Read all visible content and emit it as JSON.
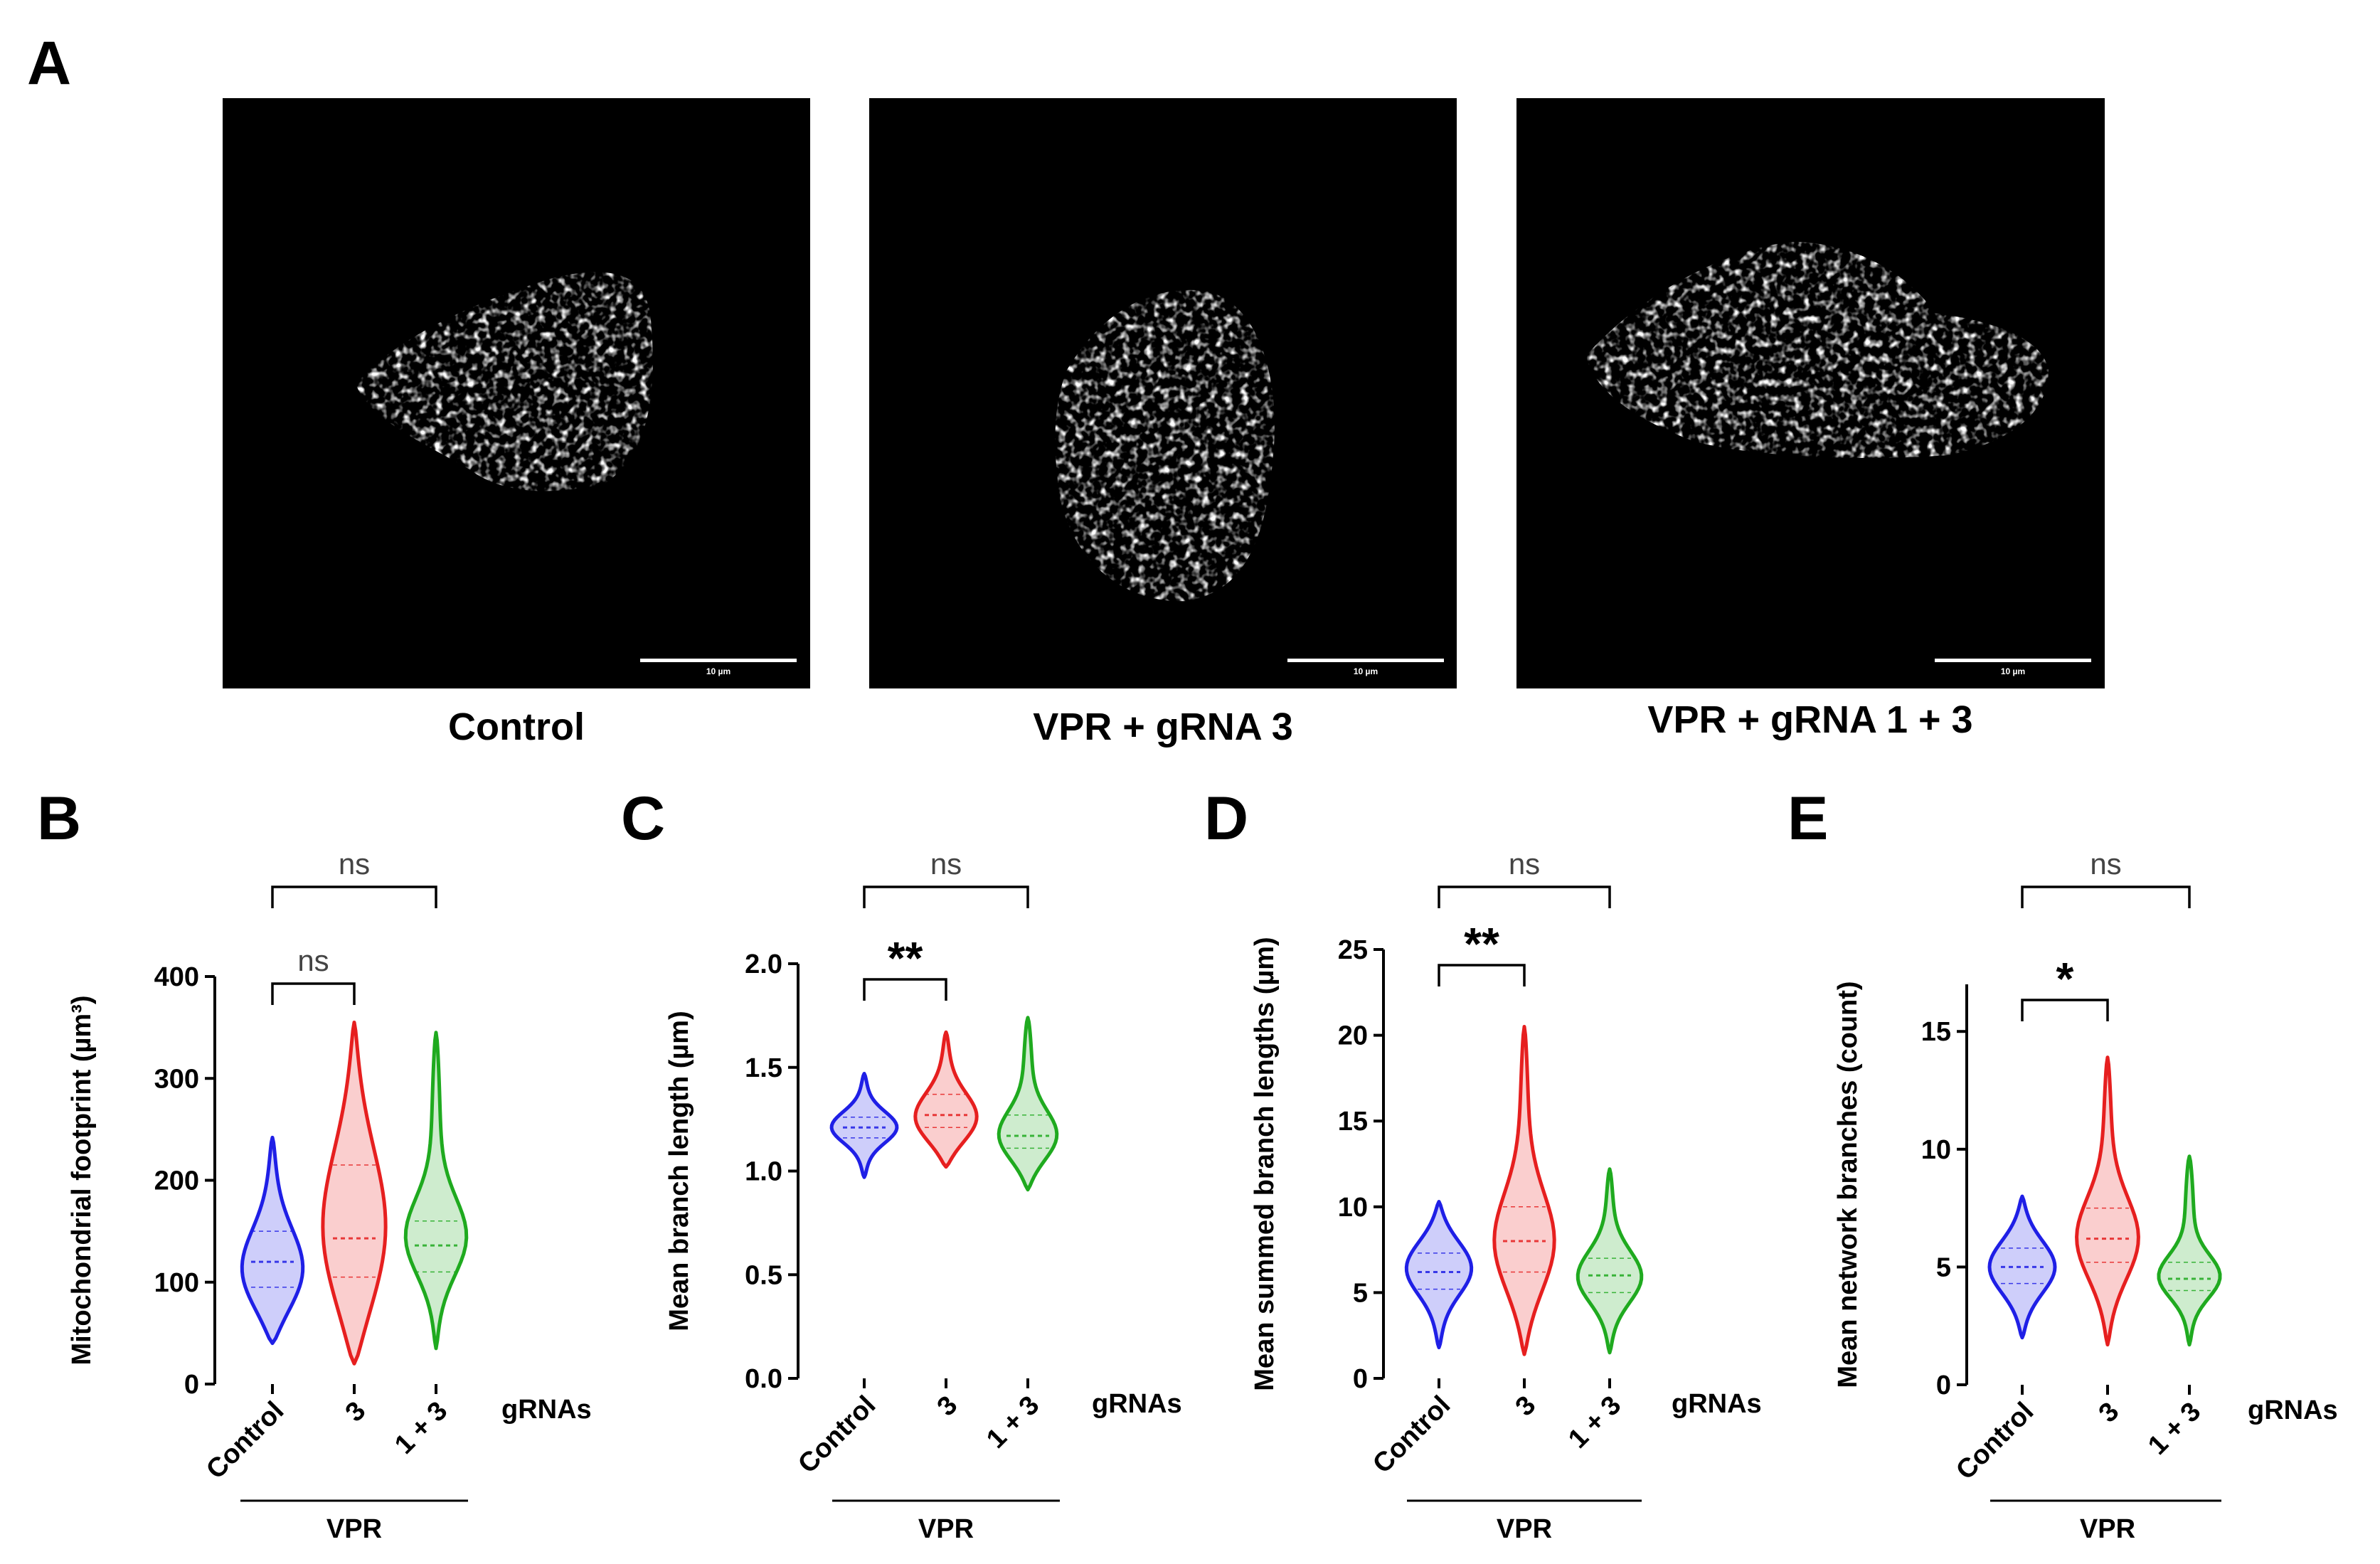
{
  "panel_labels": [
    "A",
    "B",
    "C",
    "D",
    "E"
  ],
  "images": [
    {
      "caption": "Control",
      "scale_bar": "10 µm"
    },
    {
      "caption": "VPR + gRNA 3",
      "scale_bar": "10 µm"
    },
    {
      "caption": "VPR + gRNA 1 + 3",
      "scale_bar": "10 µm"
    }
  ],
  "colors": {
    "Control": "#1f1fe6",
    "3": "#e61f1f",
    "1 + 3": "#1faa1f"
  },
  "chart_data": [
    {
      "panel": "B",
      "type": "violin",
      "ylabel": "Mitochondrial footprint (µm³)",
      "ylim": [
        0,
        400
      ],
      "yticks": [
        "0",
        "100",
        "200",
        "300",
        "400"
      ],
      "categories": [
        "Control",
        "3",
        "1 + 3"
      ],
      "xgroup_label": "gRNAs",
      "bracket_label": "VPR",
      "series": [
        {
          "name": "Control",
          "min": 40,
          "max": 242,
          "median": 120,
          "q1": 95,
          "q3": 150,
          "peak": 105
        },
        {
          "name": "3",
          "min": 20,
          "max": 355,
          "median": 143,
          "q1": 105,
          "q3": 215,
          "peak": 140
        },
        {
          "name": "1 + 3",
          "min": 35,
          "max": 345,
          "median": 136,
          "q1": 110,
          "q3": 160,
          "peak": 140
        }
      ],
      "significance": [
        {
          "pair": [
            "Control",
            "3"
          ],
          "label": "ns"
        },
        {
          "pair": [
            "Control",
            "1 + 3"
          ],
          "label": "ns"
        }
      ]
    },
    {
      "panel": "C",
      "type": "violin",
      "ylabel": "Mean branch length (µm)",
      "ylim": [
        0,
        2.0
      ],
      "yticks": [
        "0.0",
        "0.5",
        "1.0",
        "1.5",
        "2.0"
      ],
      "categories": [
        "Control",
        "3",
        "1 + 3"
      ],
      "xgroup_label": "gRNAs",
      "bracket_label": "VPR",
      "series": [
        {
          "name": "Control",
          "min": 0.97,
          "max": 1.47,
          "median": 1.21,
          "q1": 1.16,
          "q3": 1.26,
          "peak": 1.21
        },
        {
          "name": "3",
          "min": 1.02,
          "max": 1.67,
          "median": 1.27,
          "q1": 1.21,
          "q3": 1.37,
          "peak": 1.24
        },
        {
          "name": "1 + 3",
          "min": 0.91,
          "max": 1.74,
          "median": 1.17,
          "q1": 1.11,
          "q3": 1.27,
          "peak": 1.15
        }
      ],
      "significance": [
        {
          "pair": [
            "Control",
            "3"
          ],
          "label": "**"
        },
        {
          "pair": [
            "Control",
            "1 + 3"
          ],
          "label": "ns"
        }
      ]
    },
    {
      "panel": "D",
      "type": "violin",
      "ylabel": "Mean summed branch lengths (µm)",
      "ylim": [
        0,
        25
      ],
      "yticks": [
        "0",
        "5",
        "10",
        "15",
        "20",
        "25"
      ],
      "categories": [
        "Control",
        "3",
        "1 + 3"
      ],
      "xgroup_label": "gRNAs",
      "bracket_label": "VPR",
      "series": [
        {
          "name": "Control",
          "min": 1.8,
          "max": 10.3,
          "median": 6.2,
          "q1": 5.2,
          "q3": 7.3,
          "peak": 6.5
        },
        {
          "name": "3",
          "min": 1.4,
          "max": 20.5,
          "median": 8.0,
          "q1": 6.2,
          "q3": 10.0,
          "peak": 7.5
        },
        {
          "name": "1 + 3",
          "min": 1.5,
          "max": 12.2,
          "median": 6.0,
          "q1": 5.0,
          "q3": 7.0,
          "peak": 5.8
        }
      ],
      "significance": [
        {
          "pair": [
            "Control",
            "3"
          ],
          "label": "**"
        },
        {
          "pair": [
            "Control",
            "1 + 3"
          ],
          "label": "ns"
        }
      ]
    },
    {
      "panel": "E",
      "type": "violin",
      "ylabel": "Mean  network branches (count)",
      "ylim": [
        0,
        17
      ],
      "yticks": [
        "0",
        "5",
        "10",
        "15"
      ],
      "categories": [
        "Control",
        "3",
        "1 + 3"
      ],
      "xgroup_label": "gRNAs",
      "bracket_label": "VPR",
      "series": [
        {
          "name": "Control",
          "min": 2.0,
          "max": 8.0,
          "median": 5.0,
          "q1": 4.3,
          "q3": 5.8,
          "peak": 5.0
        },
        {
          "name": "3",
          "min": 1.7,
          "max": 13.9,
          "median": 6.2,
          "q1": 5.2,
          "q3": 7.5,
          "peak": 6.0
        },
        {
          "name": "1 + 3",
          "min": 1.7,
          "max": 9.7,
          "median": 4.5,
          "q1": 4.0,
          "q3": 5.2,
          "peak": 4.5
        }
      ],
      "significance": [
        {
          "pair": [
            "Control",
            "3"
          ],
          "label": "*"
        },
        {
          "pair": [
            "Control",
            "1 + 3"
          ],
          "label": "ns"
        }
      ]
    }
  ]
}
